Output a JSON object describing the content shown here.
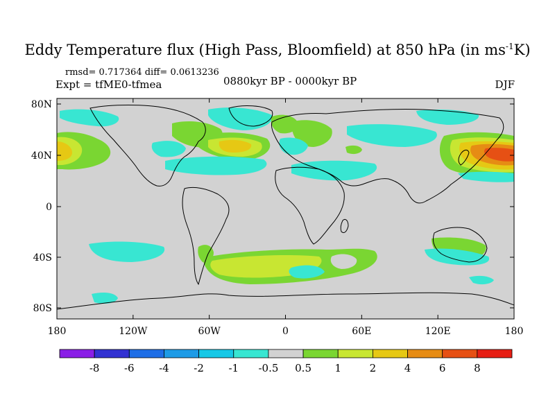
{
  "title_main": "Eddy Temperature flux (High Pass, Bloomfield) at 850 hPa (in ms",
  "title_sup": "-1",
  "title_end": "K)",
  "stats": "rmsd= 0.717364 diff= 0.0613236",
  "expt": "Expt = tfME0-tfmea",
  "period": "0880kyr BP - 0000kyr BP",
  "season": "DJF",
  "lat_labels": [
    "80N",
    "40N",
    "0",
    "40S",
    "80S"
  ],
  "lon_labels": [
    "180",
    "120W",
    "60W",
    "0",
    "60E",
    "120E",
    "180"
  ],
  "colorbar": {
    "labels": [
      "-8",
      "-6",
      "-4",
      "-2",
      "-1",
      "-0.5",
      "0.5",
      "1",
      "2",
      "4",
      "6",
      "8"
    ],
    "colors": [
      "#8a1ee6",
      "#3232d2",
      "#1e6ee6",
      "#1e9be6",
      "#16c8e6",
      "#38e6d2",
      "#d2d2d2",
      "#7ad632",
      "#c8e632",
      "#e6c814",
      "#e68c14",
      "#e65014",
      "#e61e14"
    ]
  }
}
